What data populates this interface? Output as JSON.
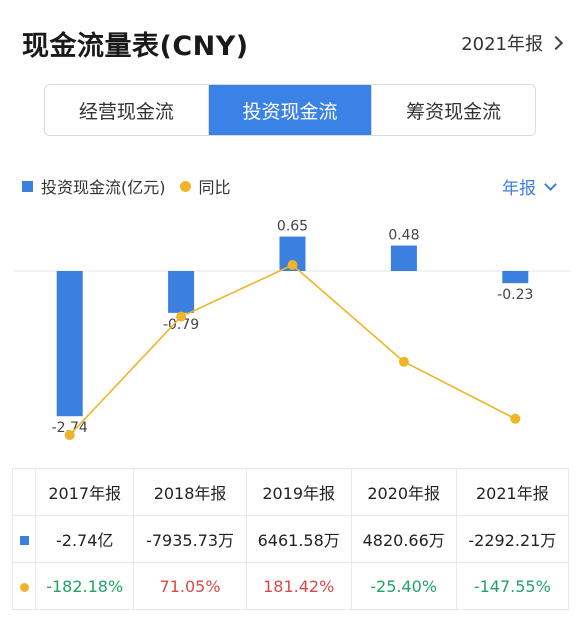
{
  "header": {
    "title": "现金流量表(CNY)",
    "period": "2021年报"
  },
  "tabs": [
    {
      "label": "经营现金流",
      "active": false
    },
    {
      "label": "投资现金流",
      "active": true
    },
    {
      "label": "筹资现金流",
      "active": false
    }
  ],
  "legend": {
    "bar_label": "投资现金流(亿元)",
    "line_label": "同比"
  },
  "frequency": "年报",
  "colors": {
    "accent": "#3b82e6",
    "bar": "#3b7fe0",
    "line": "#f0b429",
    "positive": "#d84a4a",
    "negative": "#21a366"
  },
  "chart_data": {
    "type": "bar",
    "categories": [
      "2017年报",
      "2018年报",
      "2019年报",
      "2020年报",
      "2021年报"
    ],
    "series": [
      {
        "name": "投资现金流(亿元)",
        "values": [
          -2.74,
          -0.79,
          0.65,
          0.48,
          -0.23
        ],
        "labels": [
          "-2.74",
          "-0.79",
          "0.65",
          "0.48",
          "-0.23"
        ]
      },
      {
        "name": "同比",
        "type": "line",
        "values": [
          -182.18,
          71.05,
          181.42,
          -25.4,
          -147.55
        ]
      }
    ]
  },
  "table": {
    "headers": [
      "2017年报",
      "2018年报",
      "2019年报",
      "2020年报",
      "2021年报"
    ],
    "amounts": [
      "-2.74亿",
      "-7935.73万",
      "6461.58万",
      "4820.66万",
      "-2292.21万"
    ],
    "yoy": [
      "-182.18%",
      "71.05%",
      "181.42%",
      "-25.40%",
      "-147.55%"
    ]
  }
}
